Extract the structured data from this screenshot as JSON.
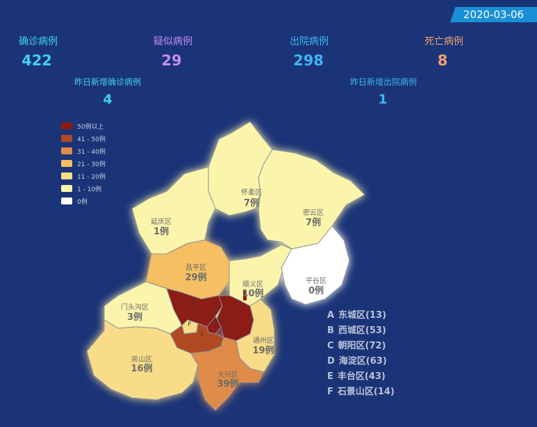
{
  "date": "2020-03-06",
  "stats": [
    {
      "id": "confirmed",
      "label": "确诊病例",
      "value": "422",
      "label_color": "#3fd0f0",
      "value_color": "#3fd0f0"
    },
    {
      "id": "suspected",
      "label": "疑似病例",
      "value": "29",
      "label_color": "#c48cf5",
      "value_color": "#c48cf5"
    },
    {
      "id": "discharged",
      "label": "出院病例",
      "value": "298",
      "label_color": "#3fb4f0",
      "value_color": "#3fb4f0"
    },
    {
      "id": "deaths",
      "label": "死亡病例",
      "value": "8",
      "label_color": "#f0a070",
      "value_color": "#f0a070"
    },
    {
      "id": "new_confirmed",
      "label": "昨日新增确诊病例",
      "value": "4",
      "label_color": "#3fd0f0",
      "value_color": "#3fd0f0"
    },
    {
      "id": "new_discharged",
      "label": "昨日新增出院病例",
      "value": "1",
      "label_color": "#3fb4f0",
      "value_color": "#3fb4f0"
    }
  ],
  "legend": [
    {
      "label": "50例以上",
      "color": "#8b1a12"
    },
    {
      "label": "41 - 50例",
      "color": "#b04a22"
    },
    {
      "label": "31 - 40例",
      "color": "#e08c4a"
    },
    {
      "label": "21 - 30例",
      "color": "#f5bf62"
    },
    {
      "label": "11 - 20例",
      "color": "#f8dc88"
    },
    {
      "label": "1 - 10例",
      "color": "#fbf5ac"
    },
    {
      "label": "0例",
      "color": "#ffffff"
    }
  ],
  "districts": [
    {
      "name": "怀柔区",
      "count": "7例"
    },
    {
      "name": "延庆区",
      "count": "1例"
    },
    {
      "name": "密云区",
      "count": "7例"
    },
    {
      "name": "昌平区",
      "count": "29例"
    },
    {
      "name": "顺义区",
      "count": "10例"
    },
    {
      "name": "平谷区",
      "count": "0例"
    },
    {
      "name": "门头沟区",
      "count": "3例"
    },
    {
      "name": "通州区",
      "count": "19例"
    },
    {
      "name": "房山区",
      "count": "16例"
    },
    {
      "name": "大兴区",
      "count": "39例"
    }
  ],
  "inner_districts": [
    {
      "letter": "A",
      "text": "东城区(13)"
    },
    {
      "letter": "B",
      "text": "西城区(53)"
    },
    {
      "letter": "C",
      "text": "朝阳区(72)"
    },
    {
      "letter": "D",
      "text": "海淀区(63)"
    },
    {
      "letter": "E",
      "text": "丰台区(43)"
    },
    {
      "letter": "F",
      "text": "石景山区(14)"
    }
  ]
}
